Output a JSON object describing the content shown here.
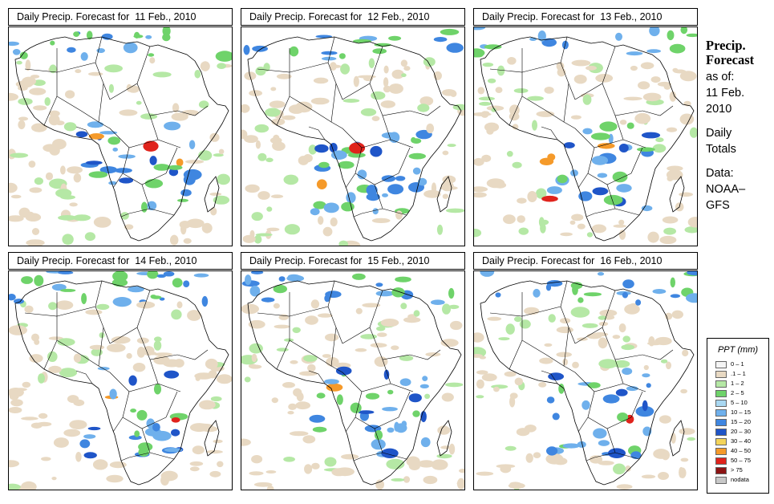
{
  "panels": [
    {
      "title": "Daily Precip. Forecast for  11 Feb., 2010"
    },
    {
      "title": "Daily Precip. Forecast for  12 Feb., 2010"
    },
    {
      "title": "Daily Precip. Forecast for  13 Feb., 2010"
    },
    {
      "title": "Daily Precip. Forecast for  14 Feb., 2010"
    },
    {
      "title": "Daily Precip. Forecast for  15 Feb., 2010"
    },
    {
      "title": "Daily Precip. Forecast for  16 Feb., 2010"
    }
  ],
  "sidebar": {
    "heading1": "Precip.",
    "heading2": "Forecast",
    "asof": "as of:",
    "date1": "11 Feb.",
    "date2": "2010",
    "daily": "Daily",
    "totals": "Totals",
    "data_label": "Data:",
    "source1": "NOAA–",
    "source2": "GFS"
  },
  "legend": {
    "title": "PPT (mm)",
    "items": [
      {
        "label": "0 – 1",
        "color": "#f5f5f5"
      },
      {
        "label": ".1 – 1",
        "color": "#e8d9c3"
      },
      {
        "label": "1 – 2",
        "color": "#b5e8a5"
      },
      {
        "label": "2 – 5",
        "color": "#6fd36a"
      },
      {
        "label": "5 – 10",
        "color": "#a9d8f2"
      },
      {
        "label": "10 – 15",
        "color": "#6fb0ec"
      },
      {
        "label": "15 – 20",
        "color": "#3f86e0"
      },
      {
        "label": "20 – 30",
        "color": "#1f55c8"
      },
      {
        "label": "30 – 40",
        "color": "#f4d45a"
      },
      {
        "label": "40 – 50",
        "color": "#f59a2a"
      },
      {
        "label": "50 – 75",
        "color": "#e0231c"
      },
      {
        "label": "> 75",
        "color": "#8c1414"
      },
      {
        "label": "nodata",
        "color": "#c8c8c8"
      }
    ]
  }
}
